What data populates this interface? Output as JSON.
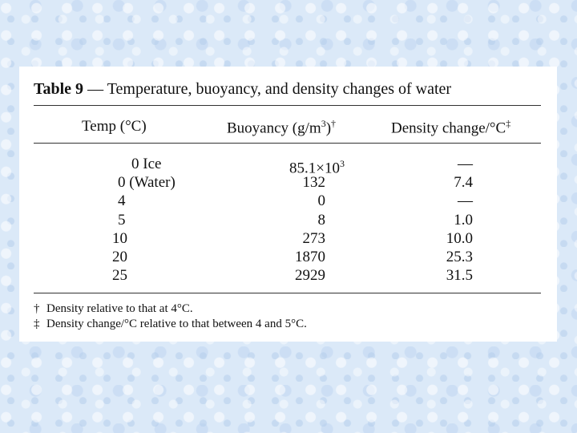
{
  "table": {
    "title_bold": "Table 9",
    "title_rest": " — Temperature, buoyancy, and density changes of water",
    "headers": {
      "temp": "Temp (°C)",
      "buoyancy": "Buoyancy (g/m",
      "buoyancy_sup": "3",
      "buoyancy_close": ")",
      "buoyancy_mark": "†",
      "density": "Density change/°C",
      "density_mark": "‡"
    },
    "rows": [
      {
        "temp": "0 Ice",
        "buoyancy": "85.1×10",
        "buoyancy_sup": "3",
        "density": "—"
      },
      {
        "temp": "0 (Water)",
        "buoyancy": "132",
        "buoyancy_sup": "",
        "density": "7.4"
      },
      {
        "temp": "4",
        "buoyancy": "0",
        "buoyancy_sup": "",
        "density": "—"
      },
      {
        "temp": "5",
        "buoyancy": "8",
        "buoyancy_sup": "",
        "density": "1.0"
      },
      {
        "temp": "10",
        "buoyancy": "273",
        "buoyancy_sup": "",
        "density": "10.0"
      },
      {
        "temp": "20",
        "buoyancy": "1870",
        "buoyancy_sup": "",
        "density": "25.3"
      },
      {
        "temp": "25",
        "buoyancy": "2929",
        "buoyancy_sup": "",
        "density": "31.5"
      }
    ],
    "footnotes": [
      {
        "mark": "†",
        "text": "Density relative to that at 4°C."
      },
      {
        "mark": "‡",
        "text": "Density change/°C relative to that between 4 and 5°C."
      }
    ]
  }
}
